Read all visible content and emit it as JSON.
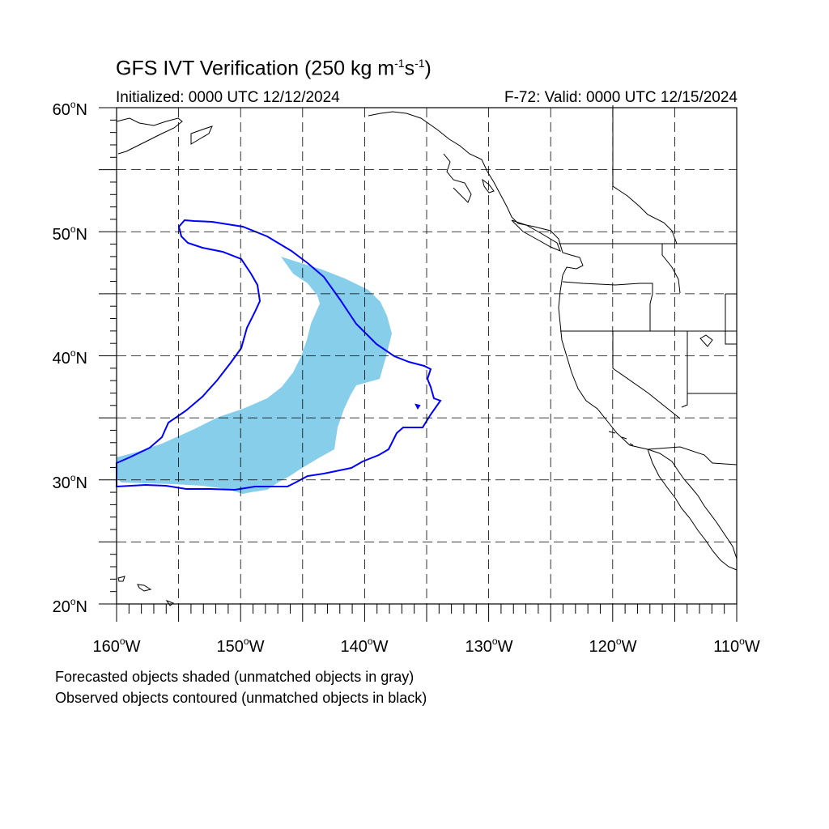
{
  "title": {
    "prefix": "GFS IVT Verification (250 kg m",
    "sup1": "-1",
    "mid": "s",
    "sup2": "-1",
    "suffix": ")"
  },
  "subtitle": {
    "initialized": "Initialized: 0000 UTC 12/12/2024",
    "valid": "F-72: Valid: 0000 UTC 12/15/2024"
  },
  "map": {
    "projection": "cylindrical equidistant",
    "lon_range": [
      -160,
      -110
    ],
    "lat_range": [
      20,
      60
    ],
    "grid": "dashed every 5 degrees",
    "lat_labels": [
      {
        "value": "60",
        "suffix": "N"
      },
      {
        "value": "50",
        "suffix": "N"
      },
      {
        "value": "40",
        "suffix": "N"
      },
      {
        "value": "30",
        "suffix": "N"
      },
      {
        "value": "20",
        "suffix": "N"
      }
    ],
    "lon_labels": [
      {
        "value": "160",
        "suffix": "W"
      },
      {
        "value": "150",
        "suffix": "W"
      },
      {
        "value": "140",
        "suffix": "W"
      },
      {
        "value": "130",
        "suffix": "W"
      },
      {
        "value": "120",
        "suffix": "W"
      },
      {
        "value": "110",
        "suffix": "W"
      }
    ],
    "forecast_fill_color": "#87ceea",
    "observed_contour_color": "#0000ff",
    "coast_color": "#000000"
  },
  "legend": {
    "line1": "Forecasted objects shaded (unmatched objects in gray)",
    "line2": "Observed objects contoured (unmatched objects in black)"
  }
}
